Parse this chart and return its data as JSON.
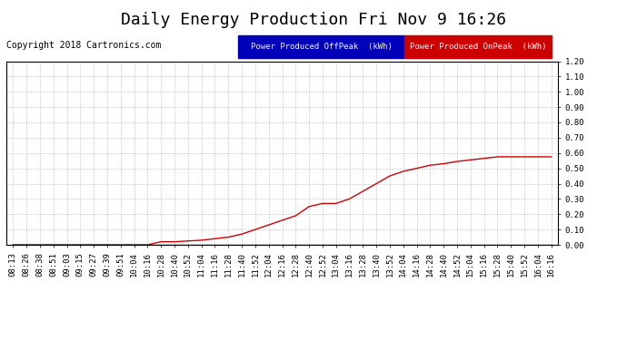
{
  "title": "Daily Energy Production Fri Nov 9 16:26",
  "copyright": "Copyright 2018 Cartronics.com",
  "legend_offpeak_label": "Power Produced OffPeak  (kWh)",
  "legend_onpeak_label": "Power Produced OnPeak  (kWh)",
  "legend_offpeak_color": "#0000bb",
  "legend_onpeak_color": "#cc0000",
  "line_color_onpeak": "#cc0000",
  "line_color_offpeak": "#0000bb",
  "background_color": "#ffffff",
  "plot_background": "#ffffff",
  "grid_color": "#aaaaaa",
  "ylim": [
    0.0,
    1.2
  ],
  "yticks": [
    0.0,
    0.1,
    0.2,
    0.3,
    0.4,
    0.5,
    0.6,
    0.7,
    0.8,
    0.9,
    1.0,
    1.1,
    1.2
  ],
  "x_labels": [
    "08:13",
    "08:26",
    "08:38",
    "08:51",
    "09:03",
    "09:15",
    "09:27",
    "09:39",
    "09:51",
    "10:04",
    "10:16",
    "10:28",
    "10:40",
    "10:52",
    "11:04",
    "11:16",
    "11:28",
    "11:40",
    "11:52",
    "12:04",
    "12:16",
    "12:28",
    "12:40",
    "12:52",
    "13:04",
    "13:16",
    "13:28",
    "13:40",
    "13:52",
    "14:04",
    "14:16",
    "14:28",
    "14:40",
    "14:52",
    "15:04",
    "15:16",
    "15:28",
    "15:40",
    "15:52",
    "16:04",
    "16:16"
  ],
  "onpeak_y": [
    0.0,
    0.0,
    0.0,
    0.0,
    0.0,
    0.0,
    0.0,
    0.0,
    0.0,
    0.0,
    0.0,
    0.02,
    0.02,
    0.025,
    0.03,
    0.04,
    0.05,
    0.07,
    0.1,
    0.13,
    0.16,
    0.19,
    0.25,
    0.27,
    0.27,
    0.3,
    0.35,
    0.4,
    0.45,
    0.48,
    0.5,
    0.52,
    0.53,
    0.545,
    0.555,
    0.565,
    0.575,
    0.575,
    0.575,
    0.575,
    0.575
  ],
  "offpeak_y": [
    0.0,
    0.0,
    0.0,
    0.0,
    0.0,
    0.0,
    0.0,
    0.0,
    0.0,
    0.0,
    0.0,
    0.0,
    0.0,
    0.0,
    0.0,
    0.0,
    0.0,
    0.0,
    0.0,
    0.0,
    0.0,
    0.0,
    0.0,
    0.0,
    0.0,
    0.0,
    0.0,
    0.0,
    0.0,
    0.0,
    0.0,
    0.0,
    0.0,
    0.0,
    0.0,
    0.0,
    0.0,
    0.0,
    0.0,
    0.0,
    0.0
  ],
  "title_fontsize": 13,
  "copyright_fontsize": 7,
  "tick_fontsize": 6.5,
  "legend_fontsize": 6.5
}
